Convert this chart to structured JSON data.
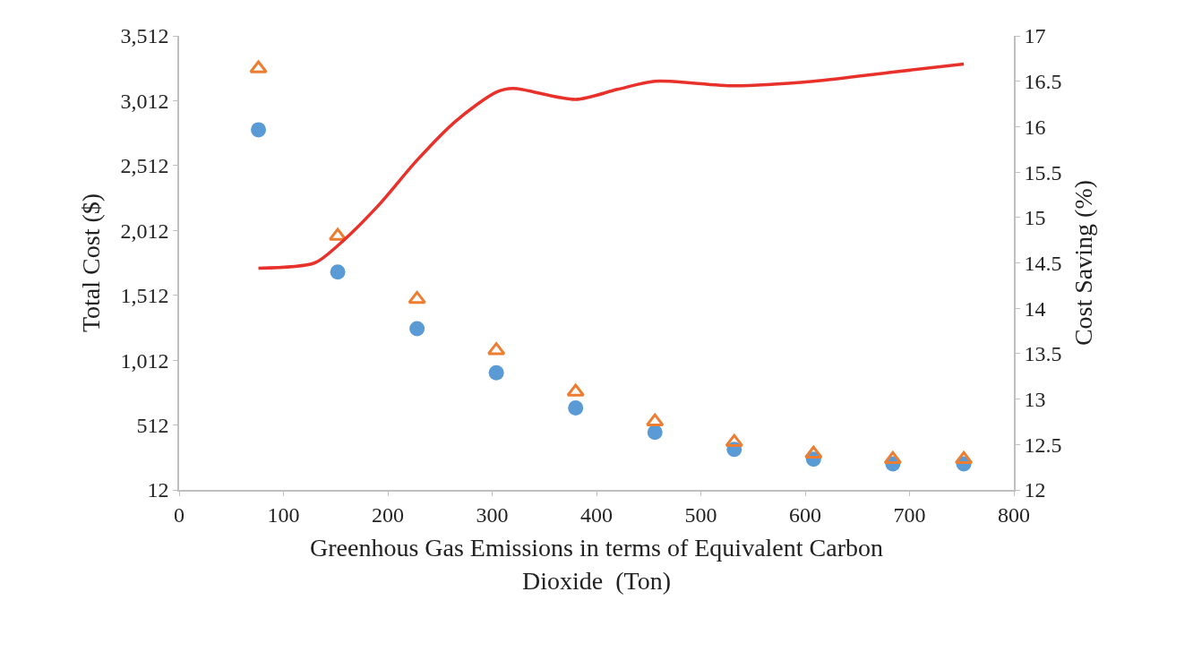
{
  "chart_data": {
    "type": "scatter",
    "xlabel": "Greenhous Gas Emissions in terms of Equivalent Carbon Dioxide  (Ton)",
    "ylabel": "Total Cost ($)",
    "y2label": "Cost Saving (%)",
    "x": [
      76,
      152,
      228,
      304,
      380,
      456,
      532,
      608,
      684,
      752
    ],
    "series": [
      {
        "marker": "circle",
        "color": "#5b9bd5",
        "values": [
          2788,
          1691,
          1254,
          914,
          644,
          456,
          324,
          248,
          213,
          213
        ]
      },
      {
        "marker": "triangle",
        "color": "#ed7d31",
        "values": [
          3260,
          1969,
          1483,
          1088,
          768,
          539,
          380,
          290,
          248,
          248
        ]
      },
      {
        "type": "line",
        "axis": "y2",
        "marker": "none",
        "color": "#e8312a",
        "x": [
          76,
          130,
          152,
          190,
          228,
          265,
          304,
          320,
          380,
          420,
          456,
          532,
          608,
          684,
          752
        ],
        "values": [
          14.44,
          14.5,
          14.69,
          15.12,
          15.63,
          16.06,
          16.38,
          16.42,
          16.3,
          16.41,
          16.5,
          16.45,
          16.5,
          16.6,
          16.69
        ]
      }
    ],
    "xlim": [
      0,
      800
    ],
    "xticks": [
      0,
      100,
      200,
      300,
      400,
      500,
      600,
      700,
      800
    ],
    "ylim": [
      12,
      3512
    ],
    "yticks": [
      12,
      512,
      {
        "value": 1012,
        "label": "1,012"
      },
      {
        "value": 1512,
        "label": "1,512"
      },
      {
        "value": 2012,
        "label": "2,012"
      },
      {
        "value": 2512,
        "label": "2,512"
      },
      {
        "value": 3012,
        "label": "3,012"
      },
      {
        "value": 3512,
        "label": "3,512"
      }
    ],
    "y2lim": [
      12,
      17
    ],
    "y2ticks": [
      12,
      12.5,
      13,
      13.5,
      14,
      14.5,
      15,
      15.5,
      16,
      16.5,
      17
    ]
  }
}
